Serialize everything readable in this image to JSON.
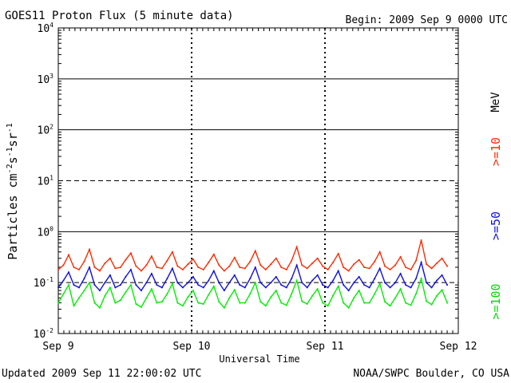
{
  "header": {
    "title": "GOES11 Proton Flux (5 minute data)",
    "begin": "Begin: 2009 Sep 9 0000 UTC"
  },
  "footer": {
    "updated": "Updated 2009 Sep 11 22:00:02 UTC",
    "credit": "NOAA/SWPC Boulder, CO USA"
  },
  "chart_data": {
    "type": "line",
    "title": "GOES11 Proton Flux (5 minute data)",
    "xlabel": "Universal Time",
    "ylabel_parts": {
      "base": "Particles cm",
      "sup1": "-2",
      "s": "s",
      "sup2": "-1",
      "sr": "sr",
      "sup3": "-1"
    },
    "x_ticks": [
      "Sep 9",
      "Sep 10",
      "Sep 11",
      "Sep 12"
    ],
    "y_scale": "log",
    "y_ticks": [
      {
        "exp": -2,
        "base": "10",
        "sup": "-2"
      },
      {
        "exp": -1,
        "base": "10",
        "sup": "-1"
      },
      {
        "exp": 0,
        "base": "10",
        "sup": "0"
      },
      {
        "exp": 1,
        "base": "10",
        "sup": "1"
      },
      {
        "exp": 2,
        "base": "10",
        "sup": "2"
      },
      {
        "exp": 3,
        "base": "10",
        "sup": "3"
      },
      {
        "exp": 4,
        "base": "10",
        "sup": "4"
      }
    ],
    "ylim": [
      0.01,
      10000
    ],
    "xlim_days": [
      0,
      3
    ],
    "energy_unit": "MeV",
    "series": [
      {
        "name": ">=10",
        "color": "#ff2a00",
        "values": [
          0.18,
          0.22,
          0.35,
          0.2,
          0.18,
          0.26,
          0.45,
          0.2,
          0.17,
          0.24,
          0.3,
          0.19,
          0.2,
          0.28,
          0.38,
          0.21,
          0.17,
          0.22,
          0.33,
          0.2,
          0.19,
          0.27,
          0.4,
          0.21,
          0.18,
          0.23,
          0.29,
          0.2,
          0.18,
          0.25,
          0.36,
          0.22,
          0.17,
          0.21,
          0.31,
          0.2,
          0.19,
          0.26,
          0.42,
          0.22,
          0.18,
          0.23,
          0.3,
          0.2,
          0.18,
          0.27,
          0.5,
          0.22,
          0.19,
          0.24,
          0.3,
          0.21,
          0.18,
          0.25,
          0.37,
          0.2,
          0.17,
          0.23,
          0.28,
          0.2,
          0.19,
          0.26,
          0.4,
          0.21,
          0.18,
          0.22,
          0.32,
          0.2,
          0.18,
          0.27,
          0.68,
          0.23,
          0.19,
          0.24,
          0.3,
          0.21
        ]
      },
      {
        "name": ">=50",
        "color": "#1010e0",
        "values": [
          0.08,
          0.11,
          0.16,
          0.09,
          0.08,
          0.12,
          0.2,
          0.09,
          0.07,
          0.1,
          0.14,
          0.08,
          0.09,
          0.13,
          0.18,
          0.09,
          0.07,
          0.1,
          0.15,
          0.09,
          0.08,
          0.12,
          0.19,
          0.1,
          0.08,
          0.1,
          0.13,
          0.09,
          0.08,
          0.11,
          0.17,
          0.1,
          0.07,
          0.1,
          0.14,
          0.09,
          0.08,
          0.12,
          0.2,
          0.1,
          0.08,
          0.1,
          0.13,
          0.09,
          0.08,
          0.12,
          0.22,
          0.1,
          0.08,
          0.11,
          0.14,
          0.09,
          0.08,
          0.11,
          0.17,
          0.09,
          0.07,
          0.1,
          0.13,
          0.09,
          0.08,
          0.12,
          0.19,
          0.1,
          0.08,
          0.1,
          0.15,
          0.09,
          0.08,
          0.12,
          0.25,
          0.1,
          0.08,
          0.11,
          0.14,
          0.09
        ]
      },
      {
        "name": ">=100",
        "color": "#00ee00",
        "values": [
          0.04,
          0.06,
          0.09,
          0.035,
          0.05,
          0.07,
          0.1,
          0.04,
          0.032,
          0.055,
          0.08,
          0.04,
          0.045,
          0.065,
          0.09,
          0.038,
          0.033,
          0.05,
          0.075,
          0.04,
          0.042,
          0.06,
          0.095,
          0.04,
          0.035,
          0.052,
          0.07,
          0.04,
          0.038,
          0.058,
          0.085,
          0.042,
          0.032,
          0.05,
          0.072,
          0.04,
          0.04,
          0.06,
          0.1,
          0.042,
          0.035,
          0.052,
          0.07,
          0.04,
          0.036,
          0.06,
          0.11,
          0.043,
          0.038,
          0.055,
          0.075,
          0.04,
          0.035,
          0.056,
          0.085,
          0.04,
          0.032,
          0.05,
          0.07,
          0.04,
          0.04,
          0.06,
          0.095,
          0.042,
          0.035,
          0.05,
          0.075,
          0.04,
          0.036,
          0.06,
          0.12,
          0.043,
          0.037,
          0.055,
          0.072,
          0.04
        ]
      }
    ]
  }
}
